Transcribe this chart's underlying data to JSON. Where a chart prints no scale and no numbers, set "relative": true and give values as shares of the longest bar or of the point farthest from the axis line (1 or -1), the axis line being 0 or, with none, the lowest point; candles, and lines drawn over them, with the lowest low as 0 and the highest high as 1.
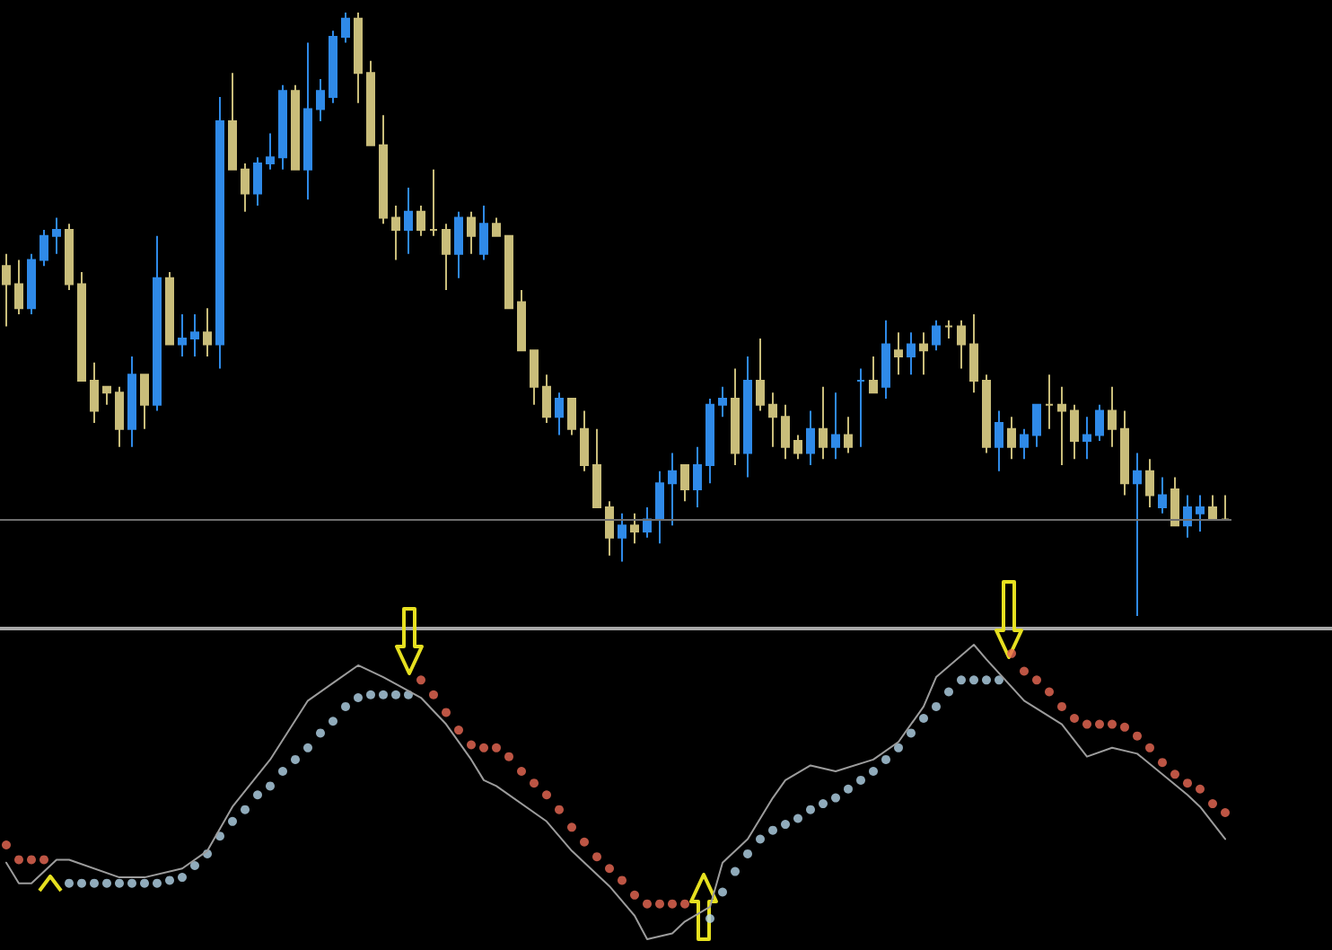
{
  "chart_data": [
    {
      "type": "candlestick",
      "relative": true,
      "categories": [
        null,
        null,
        null,
        null,
        null,
        null,
        null,
        null,
        null,
        null,
        null,
        null,
        null,
        null,
        null,
        null,
        null,
        null,
        null,
        null,
        null,
        null,
        null,
        null,
        null,
        null,
        null,
        null,
        null,
        null,
        null,
        null,
        null,
        null,
        null,
        null,
        null,
        null,
        null,
        null,
        null,
        null,
        null,
        null,
        null,
        null,
        null,
        null,
        null,
        null,
        null,
        null,
        null,
        null,
        null,
        null,
        null,
        null,
        null,
        null,
        null,
        null,
        null,
        null,
        null,
        null,
        null,
        null,
        null,
        null,
        null,
        null,
        null,
        null,
        null,
        null,
        null,
        null,
        null,
        null,
        null,
        null,
        null,
        null,
        null,
        null,
        null,
        null,
        null,
        null,
        null,
        null,
        null,
        null,
        null,
        null,
        null,
        null
      ],
      "ohlc": [
        [
          0.58,
          0.6,
          0.48,
          0.55
        ],
        [
          0.55,
          0.59,
          0.5,
          0.51
        ],
        [
          0.51,
          0.6,
          0.5,
          0.59
        ],
        [
          0.59,
          0.64,
          0.58,
          0.63
        ],
        [
          0.63,
          0.66,
          0.6,
          0.64
        ],
        [
          0.64,
          0.65,
          0.54,
          0.55
        ],
        [
          0.55,
          0.57,
          0.39,
          0.39
        ],
        [
          0.39,
          0.42,
          0.32,
          0.34
        ],
        [
          0.38,
          0.38,
          0.35,
          0.37
        ],
        [
          0.37,
          0.38,
          0.28,
          0.31
        ],
        [
          0.31,
          0.43,
          0.28,
          0.4
        ],
        [
          0.4,
          0.4,
          0.31,
          0.35
        ],
        [
          0.35,
          0.63,
          0.34,
          0.56
        ],
        [
          0.56,
          0.57,
          0.45,
          0.45
        ],
        [
          0.45,
          0.5,
          0.43,
          0.46
        ],
        [
          0.46,
          0.5,
          0.43,
          0.47
        ],
        [
          0.47,
          0.51,
          0.43,
          0.45
        ],
        [
          0.45,
          0.86,
          0.41,
          0.82
        ],
        [
          0.82,
          0.9,
          0.74,
          0.74
        ],
        [
          0.74,
          0.75,
          0.67,
          0.7
        ],
        [
          0.7,
          0.76,
          0.68,
          0.75
        ],
        [
          0.75,
          0.8,
          0.74,
          0.76
        ],
        [
          0.76,
          0.88,
          0.74,
          0.87
        ],
        [
          0.87,
          0.88,
          0.74,
          0.74
        ],
        [
          0.74,
          0.95,
          0.69,
          0.84
        ],
        [
          0.84,
          0.89,
          0.82,
          0.87
        ],
        [
          0.86,
          0.97,
          0.85,
          0.96
        ],
        [
          0.96,
          1,
          0.95,
          0.99
        ],
        [
          0.99,
          1,
          0.85,
          0.9
        ],
        [
          0.9,
          0.92,
          0.78,
          0.78
        ],
        [
          0.78,
          0.83,
          0.65,
          0.66
        ],
        [
          0.66,
          0.68,
          0.59,
          0.64
        ],
        [
          0.64,
          0.71,
          0.6,
          0.67
        ],
        [
          0.67,
          0.68,
          0.63,
          0.64
        ],
        [
          0.64,
          0.74,
          0.63,
          0.64
        ],
        [
          0.64,
          0.65,
          0.54,
          0.6
        ],
        [
          0.6,
          0.67,
          0.56,
          0.66
        ],
        [
          0.66,
          0.67,
          0.6,
          0.63
        ],
        [
          0.6,
          0.68,
          0.59,
          0.65
        ],
        [
          0.65,
          0.66,
          0.63,
          0.63
        ],
        [
          0.63,
          0.63,
          0.51,
          0.51
        ],
        [
          0.52,
          0.54,
          0.44,
          0.44
        ],
        [
          0.44,
          0.44,
          0.35,
          0.38
        ],
        [
          0.38,
          0.4,
          0.32,
          0.33
        ],
        [
          0.33,
          0.37,
          0.3,
          0.36
        ],
        [
          0.36,
          0.36,
          0.3,
          0.31
        ],
        [
          0.31,
          0.34,
          0.24,
          0.25
        ],
        [
          0.25,
          0.31,
          0.18,
          0.18
        ],
        [
          0.18,
          0.19,
          0.1,
          0.13
        ],
        [
          0.13,
          0.17,
          0.09,
          0.15
        ],
        [
          0.15,
          0.17,
          0.12,
          0.14
        ],
        [
          0.14,
          0.18,
          0.13,
          0.16
        ],
        [
          0.16,
          0.24,
          0.12,
          0.22
        ],
        [
          0.22,
          0.27,
          0.15,
          0.24
        ],
        [
          0.25,
          0.25,
          0.19,
          0.21
        ],
        [
          0.21,
          0.28,
          0.18,
          0.25
        ],
        [
          0.25,
          0.36,
          0.22,
          0.35
        ],
        [
          0.35,
          0.38,
          0.33,
          0.36
        ],
        [
          0.36,
          0.41,
          0.25,
          0.27
        ],
        [
          0.27,
          0.43,
          0.23,
          0.39
        ],
        [
          0.39,
          0.46,
          0.34,
          0.35
        ],
        [
          0.35,
          0.37,
          0.28,
          0.33
        ],
        [
          0.33,
          0.35,
          0.26,
          0.28
        ],
        [
          0.29,
          0.3,
          0.26,
          0.27
        ],
        [
          0.27,
          0.34,
          0.25,
          0.31
        ],
        [
          0.31,
          0.38,
          0.26,
          0.28
        ],
        [
          0.28,
          0.37,
          0.26,
          0.3
        ],
        [
          0.3,
          0.33,
          0.27,
          0.28
        ],
        [
          0.39,
          0.41,
          0.28,
          0.39
        ],
        [
          0.39,
          0.43,
          0.37,
          0.37
        ],
        [
          0.38,
          0.49,
          0.36,
          0.45
        ],
        [
          0.44,
          0.47,
          0.4,
          0.43
        ],
        [
          0.43,
          0.47,
          0.4,
          0.45
        ],
        [
          0.45,
          0.47,
          0.4,
          0.44
        ],
        [
          0.45,
          0.49,
          0.44,
          0.48
        ],
        [
          0.48,
          0.49,
          0.46,
          0.48
        ],
        [
          0.48,
          0.49,
          0.41,
          0.45
        ],
        [
          0.45,
          0.5,
          0.37,
          0.39
        ],
        [
          0.39,
          0.4,
          0.27,
          0.28
        ],
        [
          0.28,
          0.34,
          0.24,
          0.32
        ],
        [
          0.31,
          0.33,
          0.26,
          0.28
        ],
        [
          0.28,
          0.31,
          0.26,
          0.3
        ],
        [
          0.3,
          0.35,
          0.28,
          0.35
        ],
        [
          0.35,
          0.4,
          0.31,
          0.35
        ],
        [
          0.35,
          0.38,
          0.25,
          0.34
        ],
        [
          0.34,
          0.35,
          0.26,
          0.29
        ],
        [
          0.29,
          0.33,
          0.26,
          0.3
        ],
        [
          0.3,
          0.35,
          0.29,
          0.34
        ],
        [
          0.34,
          0.38,
          0.28,
          0.31
        ],
        [
          0.31,
          0.34,
          0.2,
          0.22
        ],
        [
          0.22,
          0.27,
          0,
          0.24
        ],
        [
          0.24,
          0.26,
          0.18,
          0.2
        ],
        [
          0.18,
          0.23,
          0.17,
          0.2
        ],
        [
          0.21,
          0.23,
          0.15,
          0.15
        ],
        [
          0.15,
          0.2,
          0.13,
          0.18
        ],
        [
          0.17,
          0.2,
          0.14,
          0.18
        ],
        [
          0.18,
          0.2,
          0.16,
          0.16
        ],
        [
          0.16,
          0.2,
          0.16,
          0.16
        ]
      ],
      "colors": [
        "#c9bd7a",
        "#c9bd7a",
        "#2f8ae8",
        "#2f8ae8",
        "#2f8ae8",
        "#c9bd7a",
        "#c9bd7a",
        "#c9bd7a",
        "#c9bd7a",
        "#c9bd7a",
        "#2f8ae8",
        "#c9bd7a",
        "#2f8ae8",
        "#c9bd7a",
        "#2f8ae8",
        "#2f8ae8",
        "#c9bd7a",
        "#2f8ae8",
        "#c9bd7a",
        "#c9bd7a",
        "#2f8ae8",
        "#2f8ae8",
        "#2f8ae8",
        "#c9bd7a",
        "#2f8ae8",
        "#2f8ae8",
        "#2f8ae8",
        "#2f8ae8",
        "#c9bd7a",
        "#c9bd7a",
        "#c9bd7a",
        "#c9bd7a",
        "#2f8ae8",
        "#c9bd7a",
        "#c9bd7a",
        "#c9bd7a",
        "#2f8ae8",
        "#c9bd7a",
        "#2f8ae8",
        "#c9bd7a",
        "#c9bd7a",
        "#c9bd7a",
        "#c9bd7a",
        "#c9bd7a",
        "#2f8ae8",
        "#c9bd7a",
        "#c9bd7a",
        "#c9bd7a",
        "#c9bd7a",
        "#2f8ae8",
        "#c9bd7a",
        "#2f8ae8",
        "#2f8ae8",
        "#2f8ae8",
        "#c9bd7a",
        "#2f8ae8",
        "#2f8ae8",
        "#2f8ae8",
        "#c9bd7a",
        "#2f8ae8",
        "#c9bd7a",
        "#c9bd7a",
        "#c9bd7a",
        "#c9bd7a",
        "#2f8ae8",
        "#c9bd7a",
        "#2f8ae8",
        "#c9bd7a",
        "#2f8ae8",
        "#c9bd7a",
        "#2f8ae8",
        "#c9bd7a",
        "#2f8ae8",
        "#c9bd7a",
        "#2f8ae8",
        "#c9bd7a",
        "#c9bd7a",
        "#c9bd7a",
        "#c9bd7a",
        "#2f8ae8",
        "#c9bd7a",
        "#2f8ae8",
        "#2f8ae8",
        "#c9bd7a",
        "#c9bd7a",
        "#c9bd7a",
        "#2f8ae8",
        "#2f8ae8",
        "#c9bd7a",
        "#c9bd7a",
        "#2f8ae8",
        "#c9bd7a",
        "#2f8ae8",
        "#c9bd7a",
        "#2f8ae8",
        "#2f8ae8",
        "#c9bd7a",
        "#c9bd7a"
      ],
      "ref_lines": [
        {
          "axis": "y",
          "value": 0.16,
          "color": "#6e6e6e",
          "line_style": "solid"
        }
      ]
    },
    {
      "type": "scatter",
      "relative": true,
      "categories": [
        null,
        null,
        null,
        null,
        null,
        null,
        null,
        null,
        null,
        null,
        null,
        null,
        null,
        null,
        null,
        null,
        null,
        null,
        null,
        null,
        null,
        null,
        null,
        null,
        null,
        null,
        null,
        null,
        null,
        null,
        null,
        null,
        null,
        null,
        null,
        null,
        null,
        null,
        null,
        null,
        null,
        null,
        null,
        null,
        null,
        null,
        null,
        null,
        null,
        null,
        null,
        null,
        null,
        null,
        null,
        null,
        null,
        null,
        null,
        null,
        null,
        null,
        null,
        null,
        null,
        null,
        null,
        null,
        null,
        null,
        null,
        null,
        null,
        null,
        null,
        null,
        null,
        null,
        null,
        null,
        null,
        null,
        null,
        null,
        null,
        null,
        null,
        null,
        null,
        null,
        null,
        null,
        null,
        null,
        null,
        null,
        null,
        null
      ],
      "series": [
        {
          "type": "line",
          "line_style": "solid",
          "color": "#9c9c9c",
          "values": [
            0.26,
            0.19,
            0.19,
            null,
            0.27,
            0.27,
            null,
            null,
            null,
            0.21,
            null,
            0.21,
            null,
            null,
            0.24,
            null,
            0.3,
            null,
            0.45,
            null,
            null,
            0.61,
            null,
            null,
            0.81,
            null,
            0.87,
            null,
            0.93,
            null,
            0.89,
            null,
            null,
            0.82,
            null,
            0.73,
            null,
            0.61,
            0.54,
            0.52,
            null,
            null,
            null,
            0.4,
            null,
            0.3,
            null,
            null,
            0.18,
            null,
            0.08,
            0,
            null,
            0.02,
            0.06,
            null,
            0.11,
            0.26,
            null,
            0.34,
            null,
            0.48,
            0.54,
            null,
            0.59,
            null,
            0.57,
            null,
            null,
            0.61,
            null,
            0.67,
            null,
            0.79,
            0.89,
            null,
            null,
            1,
            0.95,
            null,
            null,
            0.81,
            null,
            null,
            0.73,
            null,
            0.62,
            null,
            0.65,
            null,
            0.63,
            null,
            null,
            null,
            0.49,
            0.45,
            null,
            0.34
          ]
        },
        {
          "marker": "circle",
          "color": "#b4d6ea",
          "values": [
            null,
            null,
            null,
            null,
            null,
            0.19,
            0.19,
            0.19,
            0.19,
            0.19,
            0.19,
            0.19,
            0.19,
            0.2,
            0.21,
            0.25,
            0.29,
            0.35,
            0.4,
            0.44,
            0.49,
            0.52,
            0.57,
            0.61,
            0.65,
            0.7,
            0.74,
            0.79,
            0.82,
            0.83,
            0.83,
            0.83,
            0.83,
            null,
            null,
            null,
            null,
            null,
            null,
            null,
            null,
            null,
            null,
            null,
            null,
            null,
            null,
            null,
            null,
            null,
            null,
            null,
            null,
            null,
            null,
            null,
            0.07,
            0.16,
            0.23,
            0.29,
            0.34,
            0.37,
            0.39,
            0.41,
            0.44,
            0.46,
            0.48,
            0.51,
            0.54,
            0.57,
            0.61,
            0.65,
            0.7,
            0.75,
            0.79,
            0.84,
            0.88,
            0.88,
            0.88,
            0.88,
            null,
            null,
            null,
            null,
            null,
            null,
            null,
            null,
            null,
            null,
            null,
            null,
            null,
            null,
            null,
            null,
            null,
            null
          ]
        },
        {
          "marker": "circle",
          "color": "#ec6a55",
          "values": [
            0.32,
            0.27,
            0.27,
            0.27,
            null,
            null,
            null,
            null,
            null,
            null,
            null,
            null,
            null,
            null,
            null,
            null,
            null,
            null,
            null,
            null,
            null,
            null,
            null,
            null,
            null,
            null,
            null,
            null,
            null,
            null,
            null,
            null,
            null,
            0.88,
            0.83,
            0.77,
            0.71,
            0.66,
            0.65,
            0.65,
            0.62,
            0.57,
            0.53,
            0.49,
            0.44,
            0.38,
            0.33,
            0.28,
            0.24,
            0.2,
            0.15,
            0.12,
            0.12,
            0.12,
            0.12,
            null,
            null,
            null,
            null,
            null,
            null,
            null,
            null,
            null,
            null,
            null,
            null,
            null,
            null,
            null,
            null,
            null,
            null,
            null,
            null,
            null,
            null,
            null,
            null,
            null,
            0.97,
            0.91,
            0.88,
            0.84,
            0.79,
            0.75,
            0.73,
            0.73,
            0.73,
            0.72,
            0.69,
            0.65,
            0.6,
            0.56,
            0.53,
            0.51,
            0.46,
            0.43
          ]
        }
      ]
    }
  ]
}
